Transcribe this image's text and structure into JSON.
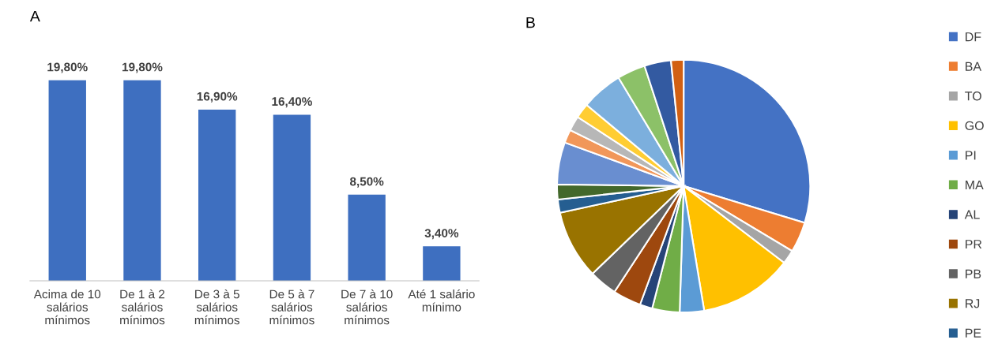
{
  "chart_data": [
    {
      "type": "bar",
      "title": "A",
      "categories": [
        "Acima de 10\nsalários\nmínimos",
        "De 1 à 2\nsalários\nmínimos",
        "De 3 à 5\nsalários\nmínimos",
        "De 5 à 7\nsalários\nmínimos",
        "De 7 à 10\nsalários\nmínimos",
        "Até 1 salário\nmínimo"
      ],
      "values": [
        19.8,
        19.8,
        16.9,
        16.4,
        8.5,
        3.4
      ],
      "value_labels": [
        "19,80%",
        "19,80%",
        "16,90%",
        "16,40%",
        "8,50%",
        "3,40%"
      ],
      "color": "#3e6fc0",
      "grid": false
    },
    {
      "type": "pie",
      "title": "B",
      "legend": "right",
      "categories": [
        "DF",
        "BA",
        "TO",
        "GO",
        "PI",
        "MA",
        "AL",
        "PR",
        "PB",
        "RJ",
        "PE",
        null,
        null,
        null,
        null,
        null,
        null,
        null,
        null,
        null
      ],
      "values": [
        29.7,
        3.9,
        1.8,
        12,
        3.1,
        3.5,
        1.6,
        3.6,
        3.6,
        8.8,
        1.7,
        1.9,
        5.4,
        1.7,
        1.9,
        1.9,
        5.3,
        3.6,
        3.4,
        1.6
      ],
      "colors": [
        "#4472c4",
        "#ed7d31",
        "#a5a5a5",
        "#ffc000",
        "#5b9bd5",
        "#70ad47",
        "#264478",
        "#9e480e",
        "#636363",
        "#997300",
        "#255e91",
        "#43682b",
        "#698ed0",
        "#f1975a",
        "#b7b7b7",
        "#ffcd33",
        "#7cafdd",
        "#8cc168",
        "#335aa1",
        "#d26012"
      ]
    }
  ]
}
